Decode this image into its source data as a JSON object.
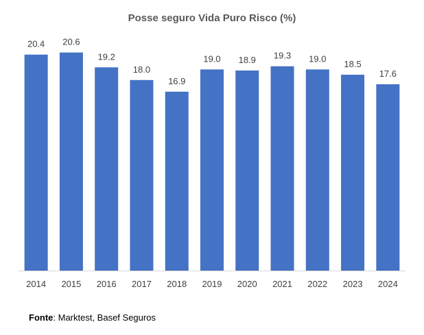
{
  "chart_data": {
    "type": "bar",
    "title": "Posse seguro Vida Puro Risco (%)",
    "categories": [
      "2014",
      "2015",
      "2016",
      "2017",
      "2018",
      "2019",
      "2020",
      "2021",
      "2022",
      "2023",
      "2024"
    ],
    "values": [
      20.4,
      20.6,
      19.2,
      18.0,
      16.9,
      19.0,
      18.9,
      19.3,
      19.0,
      18.5,
      17.6
    ],
    "value_labels": [
      "20.4",
      "20.6",
      "19.2",
      "18.0",
      "16.9",
      "19.0",
      "18.9",
      "19.3",
      "19.0",
      "18.5",
      "17.6"
    ],
    "xlabel": "",
    "ylabel": "",
    "ylim": [
      0,
      22
    ],
    "grid": false,
    "legend": "none",
    "bar_color": "#4472C4"
  },
  "source": {
    "label": "Fonte",
    "text": ": Marktest, Basef Seguros"
  }
}
